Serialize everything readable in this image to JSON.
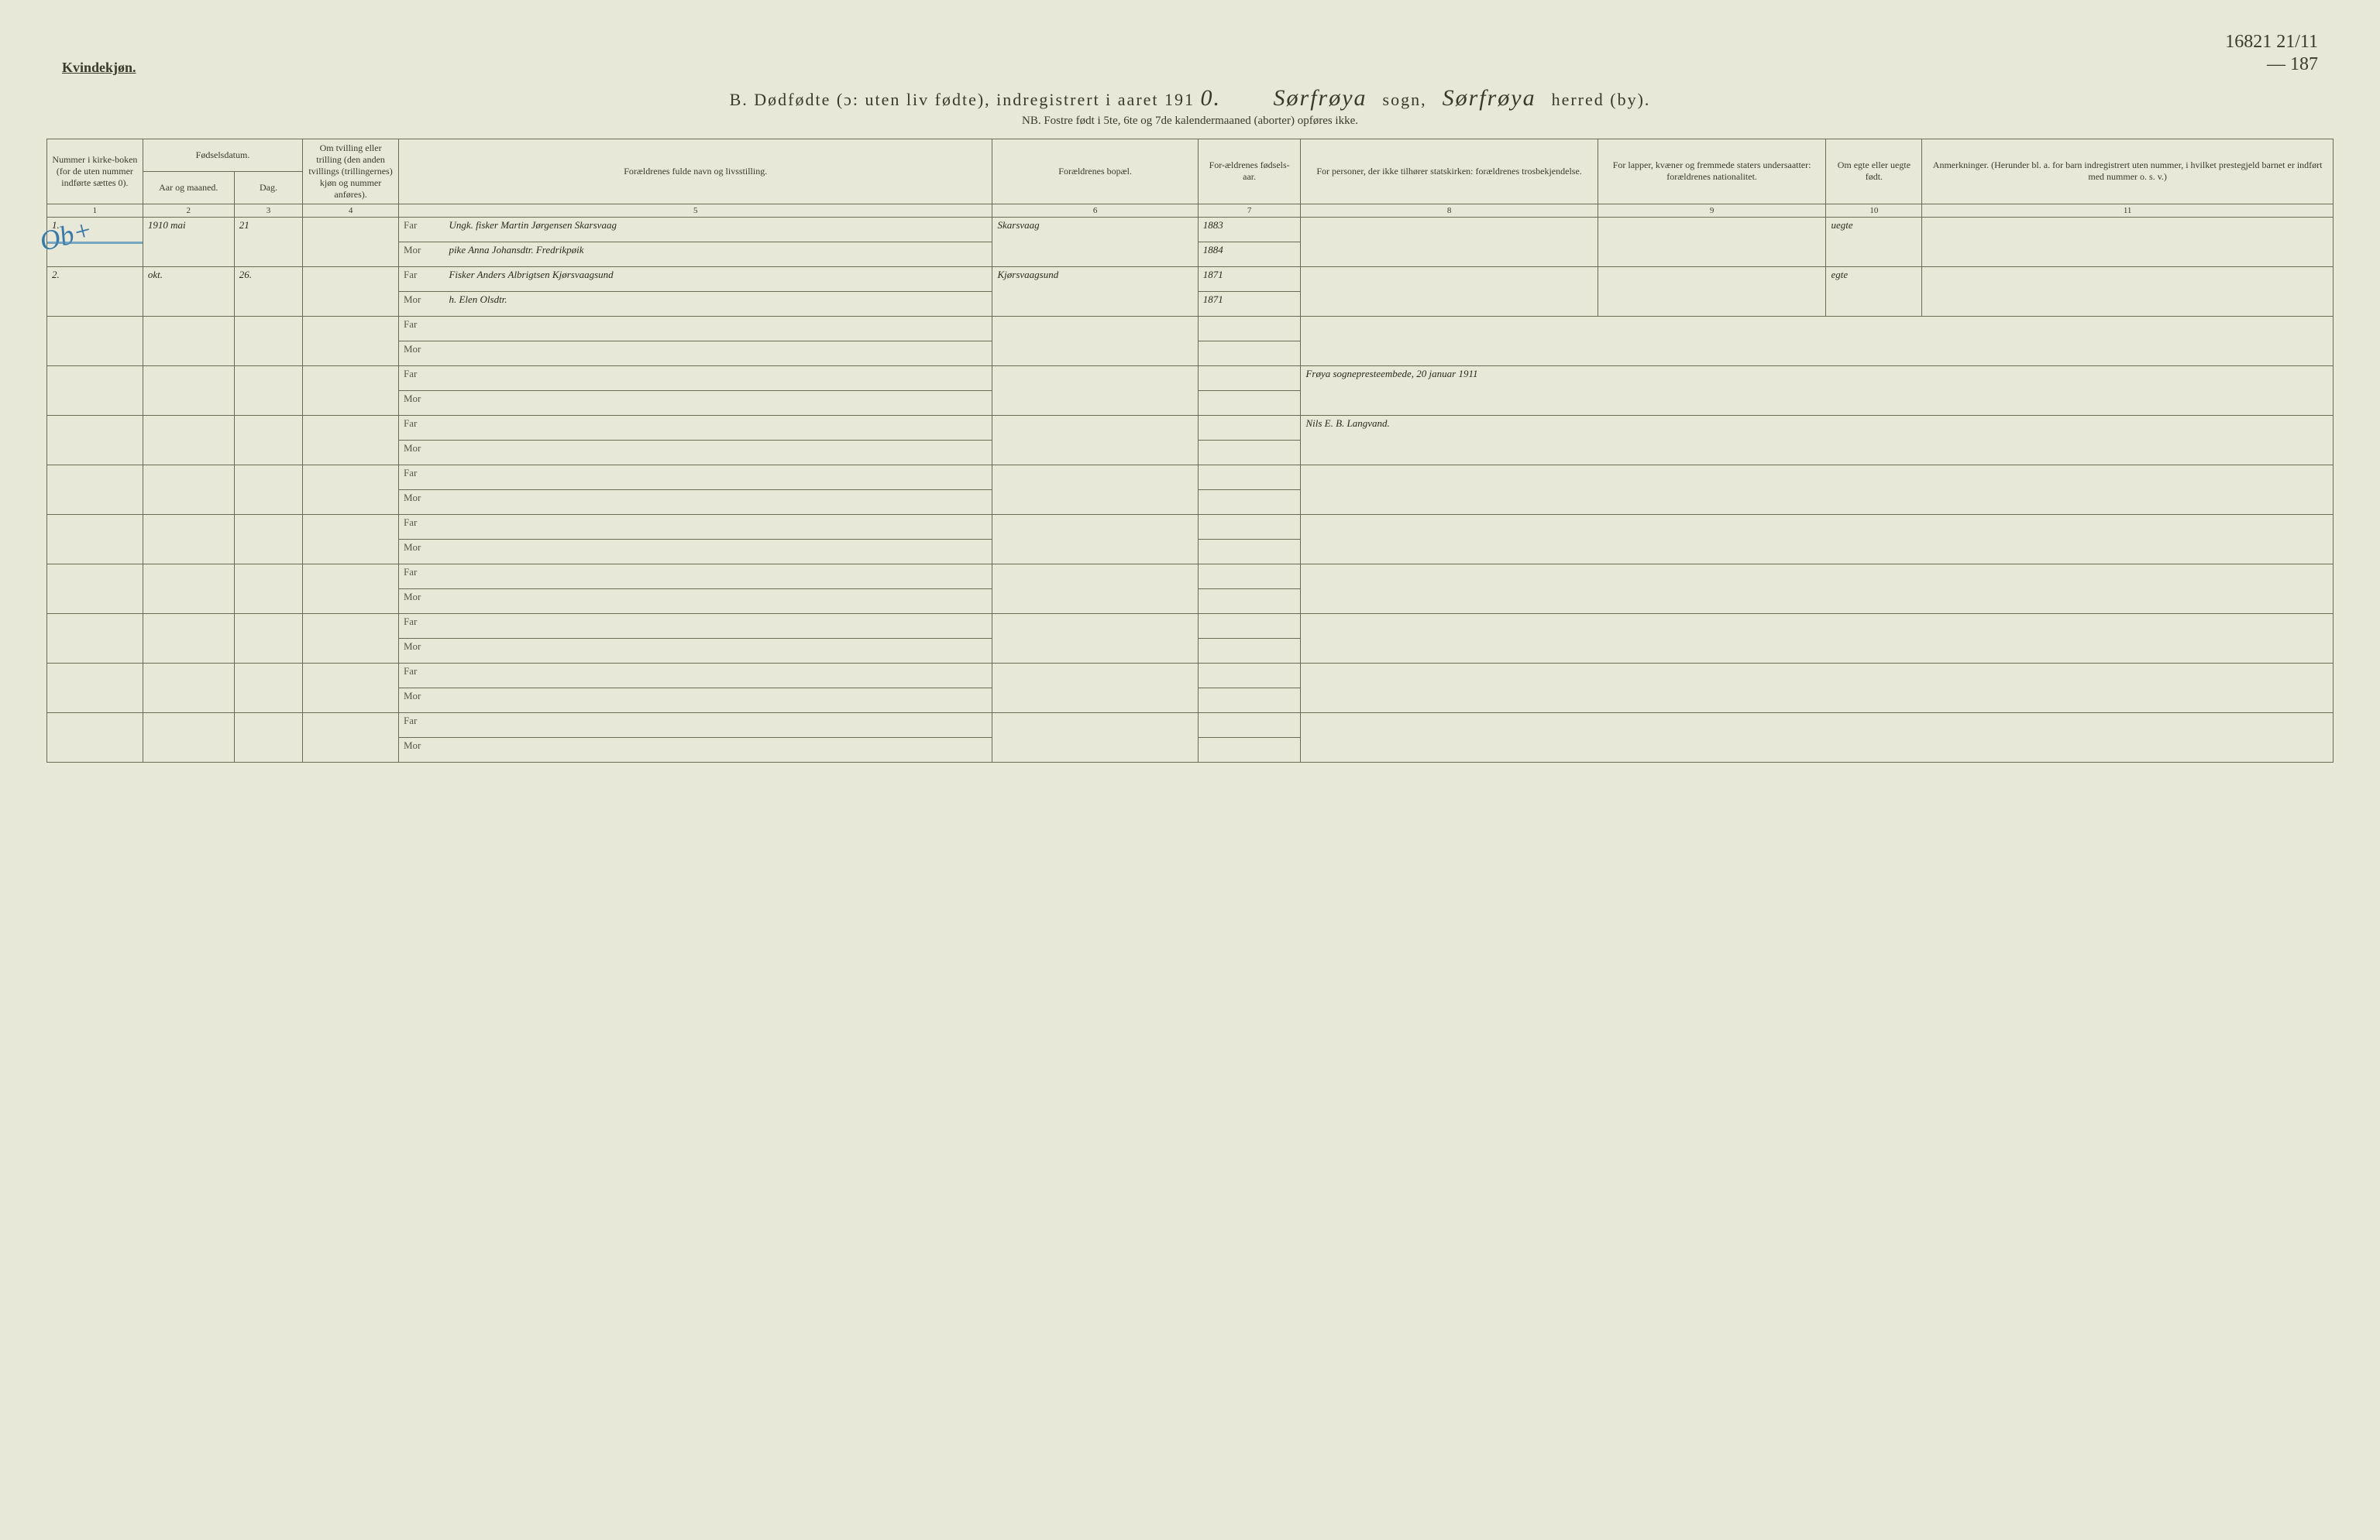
{
  "header": {
    "kvind": "Kvindekjøn.",
    "title_prefix": "B.  Dødfødte (ɔ: uten liv fødte), indregistrert i aaret 191",
    "year_suffix": "0.",
    "sogn_value": "Sørfrøya",
    "sogn_label": "sogn,",
    "herred_value": "Sørfrøya",
    "herred_label": "herred (by).",
    "nb": "NB.  Fostre født i 5te, 6te og 7de kalendermaaned (aborter) opføres ikke.",
    "corner_top": "16821 21/11",
    "corner_bottom": "— 187"
  },
  "columns": {
    "c1": "Nummer i kirke-boken (for de uten nummer indførte sættes 0).",
    "c2a": "Fødselsdatum.",
    "c2b": "Aar og maaned.",
    "c2c": "Dag.",
    "c4": "Om tvilling eller trilling (den anden tvillings (trillingernes) kjøn og nummer anføres).",
    "c5": "Forældrenes fulde navn og livsstilling.",
    "c6": "Forældrenes bopæl.",
    "c7": "For-ældrenes fødsels-aar.",
    "c8": "For personer, der ikke tilhører statskirken: forældrenes trosbekjendelse.",
    "c9": "For lapper, kvæner og fremmede staters undersaatter: forældrenes nationalitet.",
    "c10": "Om egte eller uegte født.",
    "c11": "Anmerkninger. (Herunder bl. a. for barn indregistrert uten nummer, i hvilket prestegjeld barnet er indført med nummer o. s. v.)"
  },
  "colnums": [
    "1",
    "2",
    "3",
    "4",
    "5",
    "6",
    "7",
    "8",
    "9",
    "10",
    "11"
  ],
  "far_label": "Far",
  "mor_label": "Mor",
  "margin_note": "Ob+",
  "rows": [
    {
      "num": "1.",
      "aar_maaned": "1910 mai",
      "dag": "21",
      "tvill": "",
      "far": "Ungk. fisker Martin Jørgensen Skarsvaag",
      "mor": "pike Anna Johansdtr. Fredrikpøik",
      "bopel": "Skarsvaag",
      "far_aar": "1883",
      "mor_aar": "1884",
      "c8": "",
      "c9": "",
      "egte": "uegte",
      "anm": "",
      "struck": true
    },
    {
      "num": "2.",
      "aar_maaned": "okt.",
      "dag": "26.",
      "tvill": "",
      "far": "Fisker Anders Albrigtsen Kjørsvaagsund",
      "mor": "h. Elen Olsdtr.",
      "bopel": "Kjørsvaagsund",
      "far_aar": "1871",
      "mor_aar": "1871",
      "c8": "",
      "c9": "",
      "egte": "egte",
      "anm": "",
      "struck": false
    }
  ],
  "signature": {
    "line1": "Frøya sognepresteembede, 20 januar 1911",
    "line2": "Nils E. B. Langvand."
  },
  "empty_row_count": 6,
  "colors": {
    "paper": "#e8e8d8",
    "ink": "#3a3a2a",
    "rule": "#6a6a55",
    "blue_pencil": "#4a8ab8"
  }
}
